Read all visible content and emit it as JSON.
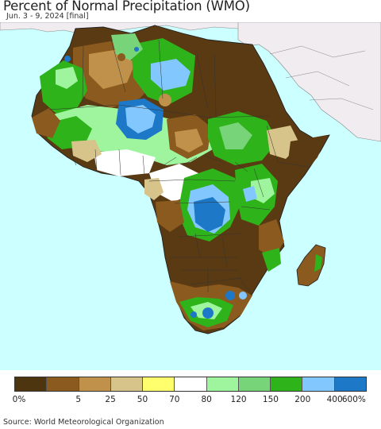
{
  "title": "Percent of Normal Precipitation (WMO)",
  "subtitle": "Jun. 3 - 9, 2024 [final]",
  "source": "Source: World Meteorological Organization",
  "legend": {
    "colors": [
      "#4d3510",
      "#8a5a1e",
      "#c0914a",
      "#d6c48a",
      "#ffff6e",
      "#ffffff",
      "#9ef59e",
      "#78d478",
      "#2eb31a",
      "#82c8ff",
      "#1e78c8"
    ],
    "labels": [
      "0%",
      "5",
      "25",
      "50",
      "70",
      "80",
      "120",
      "150",
      "200",
      "400",
      "600%"
    ]
  },
  "map": {
    "ocean_color": "#ccffff",
    "non_africa_land_color": "#f0ecf0",
    "palette": {
      "very_dry": "#5a3a12",
      "dry": "#8a5a1e",
      "below": "#c0914a",
      "slightly_below": "#d6c48a",
      "near_normal": "#ffffff",
      "above": "#9ef59e",
      "well_above": "#2eb31a",
      "wet": "#82c8ff",
      "very_wet": "#1e78c8"
    }
  }
}
